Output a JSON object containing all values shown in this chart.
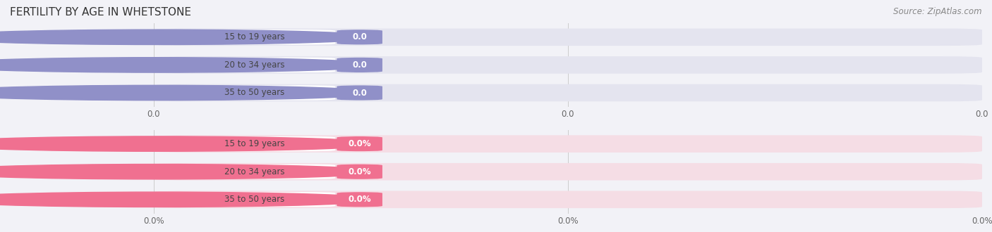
{
  "title": "FERTILITY BY AGE IN WHETSTONE",
  "source_text": "Source: ZipAtlas.com",
  "background_color": "#f2f2f7",
  "plot_bg_color": "#f2f2f7",
  "top_section": {
    "categories": [
      "15 to 19 years",
      "20 to 34 years",
      "35 to 50 years"
    ],
    "values": [
      0.0,
      0.0,
      0.0
    ],
    "bar_color": "#9090c8",
    "value_label": "0.0",
    "axis_labels": [
      "0.0",
      "0.0",
      "0.0"
    ],
    "bar_bg_color": "#e4e4ef"
  },
  "bottom_section": {
    "categories": [
      "15 to 19 years",
      "20 to 34 years",
      "35 to 50 years"
    ],
    "values": [
      0.0,
      0.0,
      0.0
    ],
    "bar_color": "#f07090",
    "value_label": "0.0%",
    "axis_labels": [
      "0.0%",
      "0.0%",
      "0.0%"
    ],
    "bar_bg_color": "#f5dde5"
  },
  "figsize": [
    14.06,
    3.3
  ],
  "dpi": 100,
  "title_fontsize": 11,
  "label_fontsize": 8.5,
  "tick_fontsize": 8.5,
  "source_fontsize": 8.5,
  "grid_color": "#cccccc"
}
